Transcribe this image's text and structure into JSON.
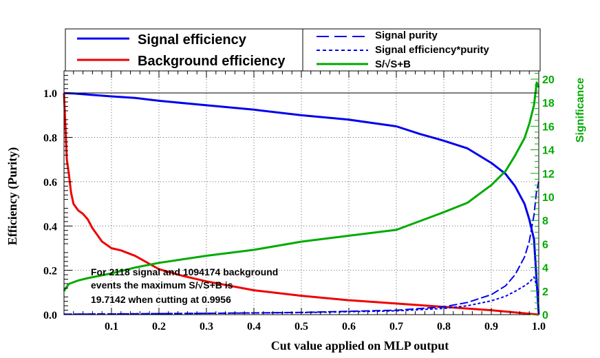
{
  "chart_data": {
    "type": "line",
    "xlabel": "Cut value applied on MLP output",
    "ylabel": "Efficiency (Purity)",
    "y2label": "Significance",
    "xlim": [
      0.0,
      1.0
    ],
    "ylim": [
      0.0,
      1.1
    ],
    "y2lim": [
      0,
      20.7
    ],
    "x_ticks": [
      0.1,
      0.2,
      0.3,
      0.4,
      0.5,
      0.6,
      0.7,
      0.8,
      0.9,
      1.0
    ],
    "x_tick_labels": [
      "0.1",
      "0.2",
      "0.3",
      "0.4",
      "0.5",
      "0.6",
      "0.7",
      "0.8",
      "0.9",
      "1.0"
    ],
    "y_ticks": [
      0.0,
      0.2,
      0.4,
      0.6,
      0.8,
      1.0
    ],
    "y_tick_labels": [
      "0.0",
      "0.2",
      "0.4",
      "0.6",
      "0.8",
      "1.0"
    ],
    "y2_ticks": [
      0,
      2,
      4,
      6,
      8,
      10,
      12,
      14,
      16,
      18,
      20
    ],
    "y2_tick_labels": [
      "0",
      "2",
      "4",
      "6",
      "8",
      "10",
      "12",
      "14",
      "16",
      "18",
      "20"
    ],
    "grid": true,
    "legend_left": [
      "Signal efficiency",
      "Background efficiency"
    ],
    "legend_right": [
      "Signal purity",
      "Signal efficiency*purity",
      "S/√S+B"
    ],
    "annotation": [
      "For 2118 signal and 1094174 background",
      "events the maximum S/√S+B is",
      "19.7142 when cutting at 0.9956"
    ],
    "series": [
      {
        "name": "Signal efficiency",
        "axis": "left",
        "style": "solid",
        "x": [
          0.0,
          0.02,
          0.05,
          0.1,
          0.15,
          0.2,
          0.3,
          0.4,
          0.5,
          0.6,
          0.7,
          0.75,
          0.8,
          0.85,
          0.9,
          0.93,
          0.95,
          0.97,
          0.98,
          0.99,
          1.0
        ],
        "y": [
          1.0,
          0.998,
          0.993,
          0.985,
          0.978,
          0.965,
          0.945,
          0.925,
          0.9,
          0.88,
          0.85,
          0.815,
          0.785,
          0.75,
          0.685,
          0.635,
          0.58,
          0.5,
          0.43,
          0.34,
          0.0
        ]
      },
      {
        "name": "Background efficiency",
        "axis": "left",
        "style": "solid",
        "x": [
          0.0,
          0.003,
          0.006,
          0.01,
          0.015,
          0.02,
          0.03,
          0.04,
          0.05,
          0.06,
          0.08,
          0.1,
          0.12,
          0.15,
          0.2,
          0.25,
          0.3,
          0.4,
          0.5,
          0.6,
          0.7,
          0.8,
          0.9,
          1.0
        ],
        "y": [
          1.0,
          0.85,
          0.7,
          0.64,
          0.55,
          0.5,
          0.47,
          0.455,
          0.43,
          0.39,
          0.33,
          0.3,
          0.29,
          0.265,
          0.205,
          0.175,
          0.15,
          0.11,
          0.085,
          0.065,
          0.05,
          0.035,
          0.02,
          0.0
        ]
      },
      {
        "name": "Signal purity",
        "axis": "left",
        "style": "dash",
        "x": [
          0.0,
          0.1,
          0.3,
          0.5,
          0.7,
          0.8,
          0.85,
          0.9,
          0.93,
          0.95,
          0.97,
          0.98,
          0.99,
          0.995,
          1.0
        ],
        "y": [
          0.002,
          0.003,
          0.006,
          0.01,
          0.02,
          0.035,
          0.055,
          0.09,
          0.13,
          0.18,
          0.26,
          0.33,
          0.45,
          0.55,
          0.6
        ]
      },
      {
        "name": "Signal efficiency*purity",
        "axis": "left",
        "style": "dot",
        "x": [
          0.0,
          0.1,
          0.3,
          0.5,
          0.7,
          0.8,
          0.85,
          0.9,
          0.93,
          0.95,
          0.97,
          0.98,
          0.99,
          1.0
        ],
        "y": [
          0.002,
          0.003,
          0.006,
          0.009,
          0.017,
          0.028,
          0.04,
          0.062,
          0.083,
          0.105,
          0.13,
          0.145,
          0.17,
          0.1
        ]
      },
      {
        "name": "S/√S+B",
        "axis": "right",
        "style": "solid",
        "x": [
          0.0,
          0.01,
          0.03,
          0.05,
          0.1,
          0.15,
          0.2,
          0.3,
          0.4,
          0.5,
          0.6,
          0.7,
          0.8,
          0.85,
          0.88,
          0.9,
          0.93,
          0.95,
          0.97,
          0.98,
          0.99,
          0.9956,
          1.0
        ],
        "y": [
          2.0,
          2.6,
          2.9,
          3.1,
          3.5,
          4.0,
          4.4,
          5.0,
          5.5,
          6.2,
          6.7,
          7.2,
          8.7,
          9.5,
          10.4,
          11.0,
          12.2,
          13.5,
          15.0,
          16.2,
          17.8,
          19.7142,
          19.3
        ]
      }
    ],
    "colors": {
      "signal": "#0000ee",
      "background": "#ee0000",
      "significance": "#00aa00",
      "frame": "#000000",
      "grid": "#666666"
    }
  }
}
